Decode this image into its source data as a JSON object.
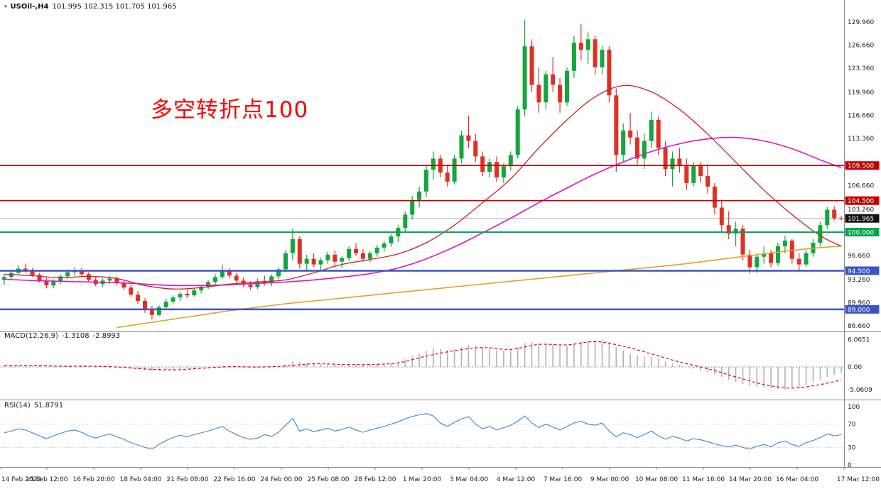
{
  "header": {
    "menu_icon": "▾",
    "symbol_period": "USOil-,H4",
    "ohlc": "101.995 102.315 101.705 101.965"
  },
  "annotation": {
    "text": "多空转折点100",
    "color": "#ff0000"
  },
  "indicators": {
    "macd": {
      "name": "MACD(12,26,9)",
      "value_main": "-1.3108",
      "value_signal": "-2.8993"
    },
    "rsi": {
      "name": "RSI(14)",
      "value": "51.8791"
    }
  },
  "time_axis": [
    "14 Feb 2022",
    "15 Feb 12:00",
    "16 Feb 20:00",
    "18 Feb 04:00",
    "21 Feb 08:00",
    "22 Feb 16:00",
    "24 Feb 00:00",
    "25 Feb 08:00",
    "28 Feb 12:00",
    "1 Mar 20:00",
    "3 Mar 04:00",
    "4 Mar 12:00",
    "7 Mar 16:00",
    "9 Mar 00:00",
    "10 Mar 08:00",
    "11 Mar 16:00",
    "14 Mar 20:00",
    "16 Mar 04:00",
    "17 Mar 12:00"
  ],
  "chart_data": [
    {
      "type": "candlestick",
      "title": "USOil H4 price",
      "price_range": [
        86.66,
        129.96
      ],
      "axis_labels": [
        129.96,
        126.66,
        123.36,
        119.96,
        116.66,
        113.36,
        106.66,
        103.26,
        96.66,
        93.26,
        89.96,
        86.66
      ],
      "levels": [
        {
          "price": 109.5,
          "label": "109.500",
          "color": "#c40000",
          "width": 1.6
        },
        {
          "price": 104.5,
          "label": "104.500",
          "color": "#c40000",
          "width": 1.6
        },
        {
          "price": 100.0,
          "label": "100.000",
          "color": "#00a650",
          "width": 2
        },
        {
          "price": 94.5,
          "label": "94.500",
          "color": "#3b54c4",
          "width": 2.4
        },
        {
          "price": 89.0,
          "label": "89.000",
          "color": "#3b54c4",
          "width": 2.4
        }
      ],
      "current_price": {
        "price": 101.965,
        "label": "101.965",
        "badge_color": "#111111"
      },
      "colors": {
        "up": "#14a63e",
        "down": "#e03024",
        "ma_fast": "#cc2222",
        "ma_mid": "#d916c8",
        "ma_slow": "#dfa32b"
      },
      "sample_idx": [
        0,
        4,
        8,
        12,
        16,
        20,
        24,
        28,
        32,
        36,
        40,
        44,
        48,
        52,
        56,
        60,
        64,
        68,
        72,
        76,
        80,
        84,
        88,
        92,
        96,
        100,
        104,
        108,
        112,
        116,
        119
      ],
      "ma_fast_red": [
        94.0,
        93.8,
        93.5,
        93.7,
        93.4,
        92.4,
        91.9,
        92.1,
        92.6,
        92.9,
        93.2,
        94.2,
        95.4,
        96.1,
        96.9,
        98.5,
        101.0,
        104.2,
        107.6,
        112.0,
        116.0,
        119.3,
        120.9,
        120.0,
        117.5,
        114.0,
        110.0,
        106.0,
        102.5,
        99.5,
        98.0
      ],
      "ma_mid_magenta": [
        93.3,
        93.1,
        93.0,
        92.9,
        92.8,
        92.6,
        92.4,
        92.4,
        92.5,
        92.7,
        92.9,
        93.2,
        93.6,
        94.1,
        94.9,
        96.2,
        97.9,
        99.9,
        102.0,
        104.2,
        106.3,
        108.3,
        110.0,
        111.5,
        112.6,
        113.3,
        113.5,
        113.0,
        111.9,
        110.3,
        109.2
      ],
      "ma_slow_orange": [
        null,
        null,
        null,
        null,
        86.4,
        87.0,
        87.6,
        88.2,
        88.8,
        89.3,
        89.8,
        90.2,
        90.6,
        91.0,
        91.4,
        91.8,
        92.2,
        92.6,
        93.0,
        93.4,
        93.8,
        94.2,
        94.6,
        95.0,
        95.4,
        95.9,
        96.4,
        96.9,
        97.4,
        97.8,
        98.0
      ],
      "candles": [
        [
          93.2,
          94.0,
          92.5,
          93.6
        ],
        [
          93.6,
          94.5,
          93.2,
          94.2
        ],
        [
          94.2,
          95.3,
          93.9,
          94.8
        ],
        [
          94.8,
          95.5,
          94.2,
          94.5
        ],
        [
          94.5,
          94.9,
          93.6,
          93.9
        ],
        [
          93.9,
          94.2,
          92.8,
          93.1
        ],
        [
          93.1,
          93.5,
          92.0,
          92.4
        ],
        [
          92.4,
          93.3,
          92.0,
          93.0
        ],
        [
          93.0,
          94.0,
          92.6,
          93.7
        ],
        [
          93.7,
          94.6,
          93.3,
          94.3
        ],
        [
          94.3,
          95.0,
          93.8,
          94.6
        ],
        [
          94.6,
          94.9,
          93.7,
          94.0
        ],
        [
          94.0,
          94.3,
          92.9,
          93.2
        ],
        [
          93.2,
          93.6,
          92.3,
          92.6
        ],
        [
          92.6,
          93.4,
          92.2,
          93.1
        ],
        [
          93.1,
          93.8,
          92.6,
          93.4
        ],
        [
          93.4,
          93.7,
          92.4,
          92.8
        ],
        [
          92.8,
          93.2,
          91.8,
          92.1
        ],
        [
          92.1,
          92.5,
          90.8,
          91.1
        ],
        [
          91.1,
          91.6,
          89.8,
          90.2
        ],
        [
          90.2,
          90.6,
          88.5,
          89.0
        ],
        [
          89.0,
          89.5,
          87.6,
          88.2
        ],
        [
          88.2,
          89.6,
          88.0,
          89.3
        ],
        [
          89.3,
          90.5,
          89.0,
          90.1
        ],
        [
          90.1,
          91.0,
          89.7,
          90.7
        ],
        [
          90.7,
          91.5,
          90.2,
          91.2
        ],
        [
          91.2,
          91.8,
          90.6,
          91.0
        ],
        [
          91.0,
          92.0,
          90.8,
          91.7
        ],
        [
          91.7,
          92.5,
          91.3,
          92.2
        ],
        [
          92.2,
          93.2,
          91.9,
          92.9
        ],
        [
          92.9,
          94.0,
          92.5,
          93.6
        ],
        [
          93.6,
          95.4,
          93.3,
          94.6
        ],
        [
          94.6,
          94.9,
          93.4,
          93.8
        ],
        [
          93.8,
          94.2,
          92.8,
          93.1
        ],
        [
          93.1,
          93.5,
          92.2,
          92.5
        ],
        [
          92.5,
          93.0,
          91.8,
          92.2
        ],
        [
          92.2,
          93.4,
          91.9,
          93.0
        ],
        [
          93.0,
          93.8,
          92.4,
          92.7
        ],
        [
          92.7,
          94.0,
          92.3,
          93.7
        ],
        [
          93.7,
          95.0,
          93.3,
          94.7
        ],
        [
          94.7,
          97.5,
          94.3,
          97.0
        ],
        [
          97.0,
          100.54,
          96.0,
          99.0
        ],
        [
          99.0,
          99.4,
          94.8,
          95.5
        ],
        [
          95.5,
          96.8,
          94.5,
          96.2
        ],
        [
          96.2,
          97.0,
          95.0,
          95.4
        ],
        [
          95.4,
          96.4,
          94.6,
          96.0
        ],
        [
          96.0,
          97.2,
          95.5,
          96.8
        ],
        [
          96.8,
          97.4,
          95.2,
          95.8
        ],
        [
          95.8,
          96.6,
          94.9,
          96.3
        ],
        [
          96.3,
          98.0,
          95.9,
          97.6
        ],
        [
          97.6,
          98.4,
          96.6,
          97.0
        ],
        [
          97.0,
          97.6,
          95.8,
          96.2
        ],
        [
          96.2,
          97.3,
          95.7,
          97.0
        ],
        [
          97.0,
          98.2,
          96.5,
          97.8
        ],
        [
          97.8,
          98.8,
          97.2,
          98.4
        ],
        [
          98.4,
          99.8,
          97.9,
          99.4
        ],
        [
          99.4,
          101.0,
          98.6,
          100.6
        ],
        [
          100.6,
          103.0,
          100.0,
          102.5
        ],
        [
          102.5,
          105.2,
          101.8,
          104.6
        ],
        [
          104.6,
          106.5,
          103.5,
          105.8
        ],
        [
          105.8,
          109.5,
          105.0,
          108.9
        ],
        [
          108.9,
          111.5,
          107.5,
          110.5
        ],
        [
          110.5,
          111.0,
          107.8,
          108.5
        ],
        [
          108.5,
          109.5,
          106.5,
          107.2
        ],
        [
          107.2,
          111.0,
          106.8,
          110.5
        ],
        [
          110.5,
          114.5,
          109.8,
          113.8
        ],
        [
          113.8,
          116.6,
          112.0,
          113.0
        ],
        [
          113.0,
          114.0,
          110.0,
          110.8
        ],
        [
          110.8,
          111.5,
          108.0,
          108.6
        ],
        [
          108.6,
          110.5,
          107.8,
          110.0
        ],
        [
          110.0,
          110.8,
          107.2,
          107.8
        ],
        [
          107.8,
          109.8,
          107.0,
          109.4
        ],
        [
          109.4,
          111.5,
          108.8,
          111.0
        ],
        [
          111.0,
          118.0,
          110.5,
          117.5
        ],
        [
          117.5,
          130.3,
          116.5,
          126.5
        ],
        [
          126.5,
          127.5,
          120.0,
          121.0
        ],
        [
          121.0,
          123.5,
          117.0,
          118.5
        ],
        [
          118.5,
          123.0,
          117.5,
          122.5
        ],
        [
          122.5,
          125.0,
          120.0,
          121.0
        ],
        [
          121.0,
          122.0,
          117.0,
          118.5
        ],
        [
          118.5,
          123.5,
          118.0,
          123.0
        ],
        [
          123.0,
          128.0,
          122.0,
          127.0
        ],
        [
          127.0,
          129.7,
          124.5,
          126.0
        ],
        [
          126.0,
          128.5,
          124.0,
          127.5
        ],
        [
          127.5,
          128.0,
          122.5,
          123.5
        ],
        [
          123.5,
          126.5,
          122.5,
          126.0
        ],
        [
          126.0,
          126.5,
          118.5,
          119.5
        ],
        [
          119.5,
          120.5,
          108.6,
          111.0
        ],
        [
          111.0,
          115.5,
          110.0,
          114.5
        ],
        [
          114.5,
          117.0,
          112.5,
          113.5
        ],
        [
          113.5,
          114.5,
          109.5,
          110.5
        ],
        [
          110.5,
          114.0,
          109.0,
          113.0
        ],
        [
          113.0,
          117.2,
          112.0,
          116.0
        ],
        [
          116.0,
          116.5,
          111.0,
          112.0
        ],
        [
          112.0,
          113.0,
          108.0,
          109.0
        ],
        [
          109.0,
          111.5,
          106.5,
          110.5
        ],
        [
          110.5,
          112.0,
          108.5,
          109.5
        ],
        [
          109.5,
          110.5,
          106.0,
          107.0
        ],
        [
          107.0,
          110.0,
          106.5,
          109.5
        ],
        [
          109.5,
          110.0,
          107.0,
          108.0
        ],
        [
          108.0,
          109.5,
          105.5,
          106.5
        ],
        [
          106.5,
          107.0,
          102.5,
          103.5
        ],
        [
          103.5,
          104.5,
          100.0,
          101.0
        ],
        [
          101.0,
          103.0,
          99.0,
          99.8
        ],
        [
          99.8,
          101.5,
          98.0,
          100.5
        ],
        [
          100.5,
          101.0,
          96.0,
          96.8
        ],
        [
          96.8,
          97.5,
          94.1,
          95.0
        ],
        [
          95.0,
          97.0,
          94.2,
          96.5
        ],
        [
          96.5,
          98.0,
          95.5,
          97.0
        ],
        [
          97.0,
          97.5,
          95.0,
          95.6
        ],
        [
          95.6,
          98.5,
          95.2,
          98.0
        ],
        [
          98.0,
          99.5,
          97.0,
          98.8
        ],
        [
          98.8,
          99.0,
          95.5,
          96.2
        ],
        [
          96.2,
          97.0,
          94.6,
          95.4
        ],
        [
          95.4,
          97.5,
          95.0,
          97.0
        ],
        [
          97.0,
          99.0,
          96.5,
          98.5
        ],
        [
          98.5,
          101.5,
          98.0,
          101.0
        ],
        [
          101.0,
          103.6,
          100.5,
          103.2
        ],
        [
          103.2,
          103.7,
          101.7,
          102.0
        ],
        [
          101.995,
          102.315,
          101.705,
          101.965
        ]
      ]
    },
    {
      "type": "bar",
      "title": "MACD(12,26,9)",
      "axis_labels": [
        {
          "v": 6.0651,
          "label": "6.0651"
        },
        {
          "v": 0,
          "label": "0.00"
        },
        {
          "v": -5.0609,
          "label": "-5.0609"
        }
      ],
      "colors": {
        "hist": "#b2b2b2",
        "signal": "#e00000"
      },
      "sample_idx": [
        0,
        4,
        8,
        12,
        16,
        20,
        24,
        28,
        32,
        36,
        40,
        44,
        48,
        52,
        56,
        60,
        64,
        68,
        72,
        76,
        80,
        84,
        88,
        92,
        96,
        100,
        104,
        108,
        112,
        116,
        119
      ],
      "signal": [
        0.25,
        0.35,
        0.15,
        0.18,
        -0.02,
        -0.45,
        -0.65,
        -0.3,
        0.05,
        -0.02,
        0.2,
        0.7,
        0.55,
        0.55,
        0.9,
        2.4,
        3.6,
        4.3,
        3.9,
        5.0,
        4.9,
        5.6,
        4.6,
        2.9,
        1.1,
        -0.4,
        -2.2,
        -3.9,
        -4.7,
        -3.9,
        -2.9
      ],
      "values": [
        0.3,
        0.35,
        0.4,
        0.45,
        0.4,
        0.3,
        0.2,
        0.1,
        0.05,
        0.1,
        0.2,
        0.25,
        0.2,
        0.1,
        0.0,
        -0.05,
        -0.1,
        -0.2,
        -0.35,
        -0.5,
        -0.7,
        -0.85,
        -0.9,
        -0.8,
        -0.65,
        -0.5,
        -0.35,
        -0.2,
        -0.1,
        0.0,
        0.1,
        0.2,
        0.15,
        0.05,
        -0.05,
        -0.1,
        -0.1,
        0.0,
        0.1,
        0.2,
        0.6,
        1.2,
        1.0,
        0.8,
        0.7,
        0.6,
        0.6,
        0.5,
        0.5,
        0.6,
        0.6,
        0.5,
        0.5,
        0.6,
        0.7,
        0.9,
        1.2,
        1.7,
        2.3,
        2.9,
        3.6,
        4.1,
        4.0,
        3.7,
        3.9,
        4.4,
        4.9,
        4.7,
        4.3,
        4.0,
        3.7,
        3.6,
        3.8,
        4.4,
        5.3,
        5.5,
        5.3,
        5.2,
        4.9,
        4.6,
        4.7,
        5.2,
        5.6,
        5.8,
        5.9,
        6.07,
        5.5,
        4.4,
        3.6,
        3.0,
        2.6,
        2.3,
        2.2,
        1.8,
        1.2,
        0.8,
        0.4,
        0.0,
        -0.4,
        -0.7,
        -1.1,
        -1.6,
        -2.2,
        -2.8,
        -3.3,
        -3.8,
        -4.2,
        -4.4,
        -4.5,
        -4.7,
        -4.9,
        -5.06,
        -4.8,
        -4.5,
        -4.0,
        -3.4,
        -2.8,
        -2.2,
        -1.7,
        -1.31
      ]
    },
    {
      "type": "line",
      "title": "RSI(14)",
      "axis_labels": [
        {
          "v": 100,
          "label": "100"
        },
        {
          "v": 70,
          "label": "70"
        },
        {
          "v": 30,
          "label": "30"
        },
        {
          "v": 0,
          "label": "0"
        }
      ],
      "levels": [
        70,
        30
      ],
      "color": "#3e86c8",
      "values": [
        55,
        58,
        62,
        60,
        55,
        50,
        45,
        50,
        54,
        58,
        60,
        56,
        50,
        46,
        50,
        53,
        48,
        44,
        38,
        34,
        30,
        27,
        35,
        42,
        47,
        51,
        48,
        52,
        55,
        58,
        62,
        66,
        58,
        52,
        47,
        44,
        46,
        52,
        49,
        56,
        68,
        80,
        58,
        62,
        57,
        60,
        63,
        58,
        61,
        65,
        60,
        56,
        60,
        63,
        66,
        70,
        74,
        79,
        83,
        86,
        88,
        84,
        72,
        66,
        73,
        79,
        83,
        70,
        62,
        66,
        60,
        64,
        68,
        75,
        84,
        72,
        64,
        70,
        65,
        60,
        66,
        72,
        75,
        70,
        68,
        72,
        58,
        48,
        55,
        52,
        47,
        52,
        58,
        50,
        44,
        49,
        46,
        41,
        45,
        43,
        40,
        36,
        33,
        31,
        34,
        30,
        27,
        32,
        35,
        31,
        38,
        41,
        35,
        32,
        38,
        42,
        47,
        53,
        50,
        51.88
      ]
    }
  ]
}
